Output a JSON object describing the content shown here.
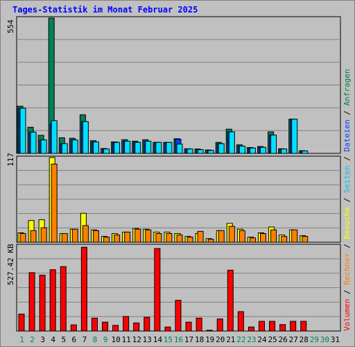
{
  "title": "Tages-Statistik im Monat Februar 2025",
  "right_legend": [
    {
      "text": "Volumen",
      "color": "#ff0000"
    },
    {
      "text": " / ",
      "color": "#000000"
    },
    {
      "text": "Rechner",
      "color": "#ff8000"
    },
    {
      "text": " / ",
      "color": "#000000"
    },
    {
      "text": "Besuche",
      "color": "#ffff00"
    },
    {
      "text": " / ",
      "color": "#000000"
    },
    {
      "text": "Seiten",
      "color": "#00c0ff"
    },
    {
      "text": " / ",
      "color": "#000000"
    },
    {
      "text": "Dateien",
      "color": "#0040ff"
    },
    {
      "text": " / ",
      "color": "#000000"
    },
    {
      "text": "Anfragen",
      "color": "#008040"
    }
  ],
  "colors": {
    "hits": "#00805c",
    "files": "#0040ff",
    "pages": "#00e0ff",
    "visits": "#ffff00",
    "sites": "#ff8000",
    "volume": "#ff0000",
    "weekday_label": "#000000",
    "weekend_label": "#00805c"
  },
  "chart_data": [
    {
      "type": "bar",
      "panel": "hits-files-pages",
      "ymax_label": "554",
      "ylim": [
        0,
        554
      ],
      "x": [
        1,
        2,
        3,
        4,
        5,
        6,
        7,
        8,
        9,
        10,
        11,
        12,
        13,
        14,
        15,
        16,
        17,
        18,
        19,
        20,
        21,
        22,
        23,
        24,
        25,
        26,
        27,
        28,
        29,
        30,
        31
      ],
      "weekend_days": [
        1,
        2,
        8,
        9,
        15,
        16,
        22,
        23,
        29,
        30
      ],
      "series": [
        {
          "key": "hits",
          "values": [
            193,
            107,
            74,
            554,
            64,
            62,
            158,
            52,
            20,
            47,
            56,
            50,
            56,
            45,
            45,
            60,
            19,
            18,
            14,
            45,
            99,
            35,
            24,
            28,
            88,
            19,
            140,
            11,
            0,
            0,
            0
          ]
        },
        {
          "key": "files",
          "values": [
            185,
            87,
            55,
            120,
            40,
            55,
            130,
            47,
            18,
            45,
            50,
            45,
            50,
            45,
            45,
            58,
            18,
            15,
            12,
            40,
            88,
            30,
            22,
            25,
            75,
            18,
            140,
            10,
            0,
            0,
            0
          ]
        },
        {
          "key": "pages",
          "values": [
            185,
            87,
            55,
            134,
            40,
            55,
            130,
            47,
            18,
            45,
            50,
            45,
            50,
            45,
            45,
            38,
            18,
            15,
            12,
            40,
            88,
            30,
            22,
            25,
            75,
            18,
            140,
            10,
            0,
            0,
            0
          ]
        }
      ]
    },
    {
      "type": "bar",
      "panel": "visits-sites",
      "ymax_label": "117",
      "ylim": [
        0,
        117
      ],
      "x": [
        1,
        2,
        3,
        4,
        5,
        6,
        7,
        8,
        9,
        10,
        11,
        12,
        13,
        14,
        15,
        16,
        17,
        18,
        19,
        20,
        21,
        22,
        23,
        24,
        25,
        26,
        27,
        28,
        29,
        30,
        31
      ],
      "series": [
        {
          "key": "visits",
          "values": [
            13,
            30,
            31,
            117,
            12,
            18,
            40,
            17,
            8,
            12,
            14,
            19,
            18,
            14,
            14,
            12,
            8,
            12,
            5,
            16,
            26,
            18,
            7,
            13,
            21,
            10,
            17,
            9,
            0,
            0,
            0
          ]
        },
        {
          "key": "sites",
          "values": [
            12,
            16,
            20,
            108,
            12,
            18,
            23,
            16,
            7,
            10,
            14,
            18,
            17,
            12,
            12,
            10,
            7,
            15,
            4,
            16,
            22,
            16,
            6,
            12,
            17,
            8,
            17,
            8,
            0,
            0,
            0
          ]
        }
      ]
    },
    {
      "type": "bar",
      "panel": "volume",
      "ymax_label": "527.42 KB",
      "ylim": [
        0,
        527.42
      ],
      "x": [
        1,
        2,
        3,
        4,
        5,
        6,
        7,
        8,
        9,
        10,
        11,
        12,
        13,
        14,
        15,
        16,
        17,
        18,
        19,
        20,
        21,
        22,
        23,
        24,
        25,
        26,
        27,
        28,
        29,
        30,
        31
      ],
      "series": [
        {
          "key": "volume",
          "values": [
            105,
            361,
            345,
            379,
            398,
            38,
            518,
            80,
            55,
            35,
            90,
            50,
            85,
            510,
            25,
            190,
            55,
            80,
            5,
            75,
            376,
            120,
            25,
            60,
            60,
            40,
            60,
            60,
            0,
            0,
            0
          ]
        }
      ]
    }
  ]
}
